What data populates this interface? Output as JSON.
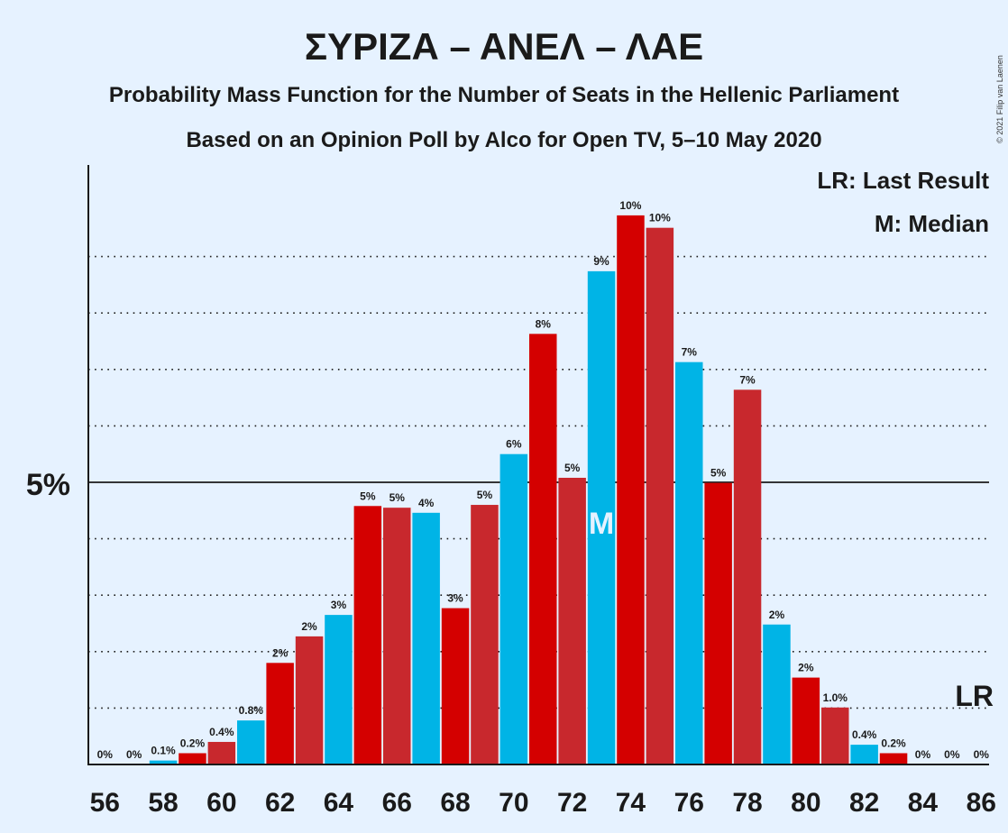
{
  "title": "ΣΥΡΙΖΑ – ΑΝΕΛ – ΛΑΕ",
  "subtitle1": "Probability Mass Function for the Number of Seats in the Hellenic Parliament",
  "subtitle2": "Based on an Opinion Poll by Alco for Open TV, 5–10 May 2020",
  "legend": {
    "lr": "LR: Last Result",
    "m": "M: Median"
  },
  "credit": "© 2021 Filip van Laenen",
  "markers": {
    "lr_label": "LR",
    "median_label": "M"
  },
  "colors": {
    "red": "#d40000",
    "red_alt": "#c8282d",
    "blue": "#00b4e6",
    "background": "#e6f2ff"
  },
  "chart_data": {
    "type": "bar",
    "xlabel": "",
    "ylabel": "",
    "ylim": [
      0,
      10.6
    ],
    "y_major_tick": {
      "value": 5,
      "label": "5%"
    },
    "y_grid_dotted": [
      1,
      2,
      3,
      4,
      6,
      7,
      8,
      9
    ],
    "x_tick_labels": [
      "56",
      "58",
      "60",
      "62",
      "64",
      "66",
      "68",
      "70",
      "72",
      "74",
      "76",
      "78",
      "80",
      "82",
      "84",
      "86"
    ],
    "median_seat": 73,
    "last_result_seat": 86,
    "bars": [
      {
        "x": 56,
        "value": 0,
        "label": "0%",
        "color": "red"
      },
      {
        "x": 57,
        "value": 0,
        "label": "0%",
        "color": "red_alt"
      },
      {
        "x": 58,
        "value": 0.07,
        "label": "0.1%",
        "color": "blue"
      },
      {
        "x": 59,
        "value": 0.2,
        "label": "0.2%",
        "color": "red"
      },
      {
        "x": 60,
        "value": 0.4,
        "label": "0.4%",
        "color": "red_alt"
      },
      {
        "x": 61,
        "value": 0.78,
        "label": "0.8%",
        "color": "blue"
      },
      {
        "x": 62,
        "value": 1.8,
        "label": "2%",
        "color": "red"
      },
      {
        "x": 63,
        "value": 2.27,
        "label": "2%",
        "color": "red_alt"
      },
      {
        "x": 64,
        "value": 2.65,
        "label": "3%",
        "color": "blue"
      },
      {
        "x": 65,
        "value": 4.58,
        "label": "5%",
        "color": "red"
      },
      {
        "x": 66,
        "value": 4.55,
        "label": "5%",
        "color": "red_alt"
      },
      {
        "x": 67,
        "value": 4.46,
        "label": "4%",
        "color": "blue"
      },
      {
        "x": 68,
        "value": 2.77,
        "label": "3%",
        "color": "red"
      },
      {
        "x": 69,
        "value": 4.6,
        "label": "5%",
        "color": "red_alt"
      },
      {
        "x": 70,
        "value": 5.5,
        "label": "6%",
        "color": "blue"
      },
      {
        "x": 71,
        "value": 7.63,
        "label": "8%",
        "color": "red"
      },
      {
        "x": 72,
        "value": 5.08,
        "label": "5%",
        "color": "red_alt"
      },
      {
        "x": 73,
        "value": 8.74,
        "label": "9%",
        "color": "blue"
      },
      {
        "x": 74,
        "value": 9.73,
        "label": "10%",
        "color": "red"
      },
      {
        "x": 75,
        "value": 9.51,
        "label": "10%",
        "color": "red_alt"
      },
      {
        "x": 76,
        "value": 7.13,
        "label": "7%",
        "color": "blue"
      },
      {
        "x": 77,
        "value": 4.99,
        "label": "5%",
        "color": "red"
      },
      {
        "x": 78,
        "value": 6.64,
        "label": "7%",
        "color": "red_alt"
      },
      {
        "x": 79,
        "value": 2.48,
        "label": "2%",
        "color": "blue"
      },
      {
        "x": 80,
        "value": 1.54,
        "label": "2%",
        "color": "red"
      },
      {
        "x": 81,
        "value": 1.01,
        "label": "1.0%",
        "color": "red_alt"
      },
      {
        "x": 82,
        "value": 0.35,
        "label": "0.4%",
        "color": "blue"
      },
      {
        "x": 83,
        "value": 0.2,
        "label": "0.2%",
        "color": "red"
      },
      {
        "x": 84,
        "value": 0,
        "label": "0%",
        "color": "red_alt"
      },
      {
        "x": 85,
        "value": 0,
        "label": "0%",
        "color": "blue"
      },
      {
        "x": 86,
        "value": 0,
        "label": "0%",
        "color": "red"
      }
    ]
  }
}
